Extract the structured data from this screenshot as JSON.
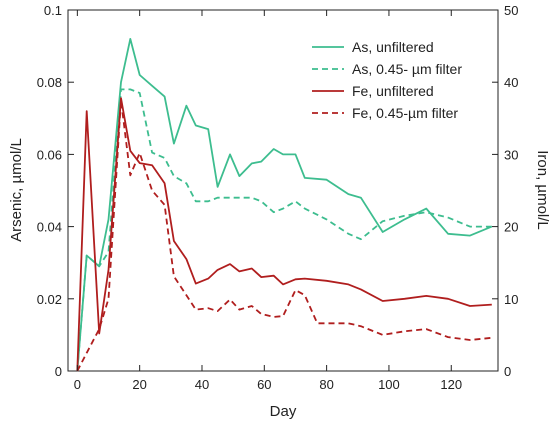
{
  "chart_data": {
    "type": "line",
    "xlabel": "Day",
    "ylabel_left": "Arsenic, µmol/L",
    "ylabel_right": "Iron, µmol/L",
    "xlim": [
      -3,
      135
    ],
    "ylim_left": [
      0,
      0.1
    ],
    "ylim_right": [
      0,
      50
    ],
    "x_ticks": [
      0,
      20,
      40,
      60,
      80,
      100,
      120
    ],
    "y_ticks_left": [
      "0",
      "0.02",
      "0.04",
      "0.06",
      "0.08",
      "0.1"
    ],
    "y_ticks_right": [
      "0",
      "10",
      "20",
      "30",
      "40",
      "50"
    ],
    "grid": false,
    "legend_position": "top-right",
    "series": [
      {
        "name": "As, unfiltered",
        "axis": "left",
        "style": "solid",
        "color": "#3dbd8f",
        "x": [
          0,
          3,
          7,
          10,
          14,
          17,
          20,
          24,
          28,
          31,
          35,
          38,
          42,
          45,
          49,
          52,
          56,
          59,
          63,
          66,
          70,
          73,
          80,
          87,
          91,
          98,
          105,
          112,
          119,
          126,
          133
        ],
        "y": [
          0,
          0.032,
          0.029,
          0.042,
          0.08,
          0.092,
          0.082,
          0.079,
          0.076,
          0.063,
          0.0735,
          0.068,
          0.067,
          0.051,
          0.06,
          0.054,
          0.0575,
          0.058,
          0.0615,
          0.06,
          0.06,
          0.0535,
          0.053,
          0.049,
          0.048,
          0.0385,
          0.042,
          0.045,
          0.038,
          0.0375,
          0.04
        ]
      },
      {
        "name": "As, 0.45- µm filter",
        "axis": "left",
        "style": "dashed",
        "color": "#3dbd8f",
        "x": [
          0,
          3,
          7,
          10,
          14,
          17,
          20,
          24,
          28,
          31,
          35,
          38,
          42,
          45,
          49,
          52,
          56,
          59,
          63,
          66,
          70,
          73,
          80,
          87,
          91,
          98,
          105,
          112,
          119,
          126,
          133
        ],
        "y": [
          0,
          0.032,
          0.029,
          0.033,
          0.078,
          0.078,
          0.077,
          0.0605,
          0.059,
          0.054,
          0.052,
          0.047,
          0.047,
          0.048,
          0.048,
          0.048,
          0.048,
          0.047,
          0.044,
          0.045,
          0.047,
          0.045,
          0.042,
          0.038,
          0.0365,
          0.0415,
          0.043,
          0.044,
          0.0425,
          0.04,
          0.04
        ]
      },
      {
        "name": "Fe, unfiltered",
        "axis": "right",
        "style": "solid",
        "color": "#b01e1e",
        "x": [
          0,
          3,
          7,
          10,
          14,
          17,
          20,
          24,
          28,
          31,
          35,
          38,
          42,
          45,
          49,
          52,
          56,
          59,
          63,
          66,
          70,
          73,
          80,
          87,
          91,
          98,
          105,
          112,
          119,
          126,
          133
        ],
        "y": [
          0,
          36,
          5.2,
          14,
          37.8,
          30.5,
          28.8,
          28.5,
          26,
          18,
          15.5,
          12.1,
          12.8,
          14,
          14.8,
          13.8,
          14.2,
          13,
          13.2,
          12,
          12.7,
          12.8,
          12.5,
          12,
          11.3,
          9.7,
          10,
          10.4,
          10,
          9,
          9.2
        ]
      },
      {
        "name": "Fe, 0.45-µm filter",
        "axis": "right",
        "style": "dashed",
        "color": "#b01e1e",
        "x": [
          0,
          3,
          7,
          10,
          14,
          17,
          20,
          24,
          28,
          31,
          35,
          38,
          42,
          45,
          49,
          52,
          56,
          59,
          63,
          66,
          70,
          73,
          77,
          80,
          87,
          91,
          98,
          105,
          112,
          119,
          126,
          133
        ],
        "y": [
          0,
          2.5,
          5.8,
          10,
          37.5,
          27.1,
          30.2,
          25,
          23,
          13.1,
          10.5,
          8.5,
          8.7,
          8.3,
          9.9,
          8.5,
          9,
          7.9,
          7.5,
          7.6,
          11.2,
          10.5,
          6.6,
          6.6,
          6.6,
          6.2,
          5,
          5.5,
          5.8,
          4.7,
          4.3,
          4.6
        ]
      }
    ]
  }
}
